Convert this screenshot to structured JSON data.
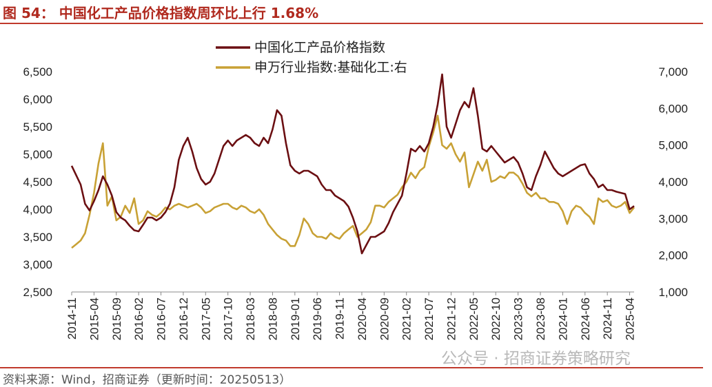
{
  "header": {
    "title": "图 54： 中国化工产品价格指数周环比上行 1.68%"
  },
  "footer": {
    "source": "资料来源：Wind，招商证券（更新时间：20250513）",
    "watermark": "公众号 · 招商证券策略研究"
  },
  "chart_data": {
    "type": "line",
    "title": "",
    "x_tick_labels": [
      "2014-11",
      "2015-04",
      "2015-09",
      "2016-02",
      "2016-07",
      "2016-12",
      "2017-05",
      "2017-10",
      "2018-03",
      "2018-08",
      "2019-01",
      "2019-06",
      "2019-11",
      "2020-04",
      "2020-09",
      "2021-02",
      "2021-07",
      "2021-12",
      "2022-05",
      "2022-10",
      "2023-03",
      "2023-08",
      "2024-01",
      "2024-06",
      "2024-11",
      "2025-04"
    ],
    "x_range": [
      "2014-11",
      "2025-05"
    ],
    "y_left": {
      "range": [
        2500,
        6500
      ],
      "ticks": [
        "2,500",
        "3,000",
        "3,500",
        "4,000",
        "4,500",
        "5,000",
        "5,500",
        "6,000",
        "6,500"
      ]
    },
    "y_right": {
      "range": [
        1000,
        7000
      ],
      "ticks": [
        "1,000",
        "2,000",
        "3,000",
        "4,000",
        "5,000",
        "6,000",
        "7,000"
      ]
    },
    "grid": false,
    "legend_position": "top-center",
    "series": [
      {
        "name": "中国化工产品价格指数",
        "axis": "left",
        "color": "#6b0f12",
        "points": [
          [
            "2014-11",
            4790
          ],
          [
            "2015-01",
            4450
          ],
          [
            "2015-02",
            4100
          ],
          [
            "2015-03",
            3980
          ],
          [
            "2015-04",
            4150
          ],
          [
            "2015-05",
            4350
          ],
          [
            "2015-06",
            4600
          ],
          [
            "2015-07",
            4450
          ],
          [
            "2015-08",
            4250
          ],
          [
            "2015-09",
            3950
          ],
          [
            "2015-10",
            3850
          ],
          [
            "2015-11",
            3800
          ],
          [
            "2015-12",
            3700
          ],
          [
            "2016-01",
            3620
          ],
          [
            "2016-02",
            3600
          ],
          [
            "2016-03",
            3720
          ],
          [
            "2016-04",
            3850
          ],
          [
            "2016-05",
            3850
          ],
          [
            "2016-06",
            3800
          ],
          [
            "2016-07",
            3850
          ],
          [
            "2016-08",
            3950
          ],
          [
            "2016-09",
            4100
          ],
          [
            "2016-10",
            4400
          ],
          [
            "2016-11",
            4900
          ],
          [
            "2016-12",
            5150
          ],
          [
            "2017-01",
            5300
          ],
          [
            "2017-02",
            5050
          ],
          [
            "2017-03",
            4750
          ],
          [
            "2017-04",
            4550
          ],
          [
            "2017-05",
            4450
          ],
          [
            "2017-06",
            4500
          ],
          [
            "2017-07",
            4650
          ],
          [
            "2017-08",
            4900
          ],
          [
            "2017-09",
            5150
          ],
          [
            "2017-10",
            5250
          ],
          [
            "2017-11",
            5150
          ],
          [
            "2017-12",
            5250
          ],
          [
            "2018-01",
            5300
          ],
          [
            "2018-02",
            5350
          ],
          [
            "2018-03",
            5300
          ],
          [
            "2018-04",
            5200
          ],
          [
            "2018-05",
            5150
          ],
          [
            "2018-06",
            5300
          ],
          [
            "2018-07",
            5200
          ],
          [
            "2018-08",
            5450
          ],
          [
            "2018-09",
            5800
          ],
          [
            "2018-10",
            5700
          ],
          [
            "2018-11",
            5200
          ],
          [
            "2018-12",
            4800
          ],
          [
            "2019-01",
            4700
          ],
          [
            "2019-02",
            4650
          ],
          [
            "2019-03",
            4700
          ],
          [
            "2019-04",
            4700
          ],
          [
            "2019-05",
            4650
          ],
          [
            "2019-06",
            4600
          ],
          [
            "2019-07",
            4450
          ],
          [
            "2019-08",
            4350
          ],
          [
            "2019-09",
            4350
          ],
          [
            "2019-10",
            4250
          ],
          [
            "2019-11",
            4200
          ],
          [
            "2019-12",
            4150
          ],
          [
            "2020-01",
            4050
          ],
          [
            "2020-02",
            3850
          ],
          [
            "2020-03",
            3600
          ],
          [
            "2020-04",
            3200
          ],
          [
            "2020-05",
            3350
          ],
          [
            "2020-06",
            3500
          ],
          [
            "2020-07",
            3500
          ],
          [
            "2020-08",
            3550
          ],
          [
            "2020-09",
            3600
          ],
          [
            "2020-10",
            3750
          ],
          [
            "2020-11",
            3950
          ],
          [
            "2020-12",
            4100
          ],
          [
            "2021-01",
            4250
          ],
          [
            "2021-02",
            4650
          ],
          [
            "2021-03",
            5100
          ],
          [
            "2021-04",
            5050
          ],
          [
            "2021-05",
            5150
          ],
          [
            "2021-06",
            5050
          ],
          [
            "2021-07",
            5200
          ],
          [
            "2021-08",
            5500
          ],
          [
            "2021-09",
            5900
          ],
          [
            "2021-10",
            6450
          ],
          [
            "2021-11",
            5500
          ],
          [
            "2021-12",
            5300
          ],
          [
            "2022-01",
            5550
          ],
          [
            "2022-02",
            5800
          ],
          [
            "2022-03",
            5950
          ],
          [
            "2022-04",
            5850
          ],
          [
            "2022-05",
            6200
          ],
          [
            "2022-06",
            5700
          ],
          [
            "2022-07",
            5100
          ],
          [
            "2022-08",
            5050
          ],
          [
            "2022-09",
            5150
          ],
          [
            "2022-10",
            5050
          ],
          [
            "2022-11",
            4950
          ],
          [
            "2022-12",
            4850
          ],
          [
            "2023-01",
            4900
          ],
          [
            "2023-02",
            4950
          ],
          [
            "2023-03",
            4850
          ],
          [
            "2023-04",
            4650
          ],
          [
            "2023-05",
            4400
          ],
          [
            "2023-06",
            4350
          ],
          [
            "2023-07",
            4600
          ],
          [
            "2023-08",
            4800
          ],
          [
            "2023-09",
            5050
          ],
          [
            "2023-10",
            4900
          ],
          [
            "2023-11",
            4750
          ],
          [
            "2023-12",
            4650
          ],
          [
            "2024-01",
            4600
          ],
          [
            "2024-02",
            4650
          ],
          [
            "2024-03",
            4700
          ],
          [
            "2024-04",
            4750
          ],
          [
            "2024-05",
            4800
          ],
          [
            "2024-06",
            4820
          ],
          [
            "2024-07",
            4650
          ],
          [
            "2024-08",
            4550
          ],
          [
            "2024-09",
            4400
          ],
          [
            "2024-10",
            4450
          ],
          [
            "2024-11",
            4350
          ],
          [
            "2024-12",
            4350
          ],
          [
            "2025-01",
            4320
          ],
          [
            "2025-02",
            4300
          ],
          [
            "2025-03",
            4280
          ],
          [
            "2025-04",
            4000
          ],
          [
            "2025-05",
            4060
          ]
        ]
      },
      {
        "name": "申万行业指数:基础化工:右",
        "axis": "right",
        "color": "#c8a135",
        "points": [
          [
            "2014-11",
            2200
          ],
          [
            "2014-12",
            2300
          ],
          [
            "2015-01",
            2400
          ],
          [
            "2015-02",
            2600
          ],
          [
            "2015-03",
            3100
          ],
          [
            "2015-04",
            3700
          ],
          [
            "2015-05",
            4500
          ],
          [
            "2015-06",
            5050
          ],
          [
            "2015-07",
            3350
          ],
          [
            "2015-08",
            3600
          ],
          [
            "2015-09",
            2950
          ],
          [
            "2015-10",
            3050
          ],
          [
            "2015-11",
            3350
          ],
          [
            "2015-12",
            3150
          ],
          [
            "2016-01",
            3550
          ],
          [
            "2016-02",
            2850
          ],
          [
            "2016-03",
            2950
          ],
          [
            "2016-04",
            3200
          ],
          [
            "2016-05",
            3100
          ],
          [
            "2016-06",
            3050
          ],
          [
            "2016-07",
            3150
          ],
          [
            "2016-08",
            3300
          ],
          [
            "2016-09",
            3250
          ],
          [
            "2016-10",
            3350
          ],
          [
            "2016-11",
            3400
          ],
          [
            "2016-12",
            3350
          ],
          [
            "2017-01",
            3300
          ],
          [
            "2017-02",
            3350
          ],
          [
            "2017-03",
            3400
          ],
          [
            "2017-04",
            3300
          ],
          [
            "2017-05",
            3150
          ],
          [
            "2017-06",
            3200
          ],
          [
            "2017-07",
            3300
          ],
          [
            "2017-08",
            3350
          ],
          [
            "2017-09",
            3400
          ],
          [
            "2017-10",
            3400
          ],
          [
            "2017-11",
            3300
          ],
          [
            "2017-12",
            3250
          ],
          [
            "2018-01",
            3350
          ],
          [
            "2018-02",
            3300
          ],
          [
            "2018-03",
            3200
          ],
          [
            "2018-04",
            3150
          ],
          [
            "2018-05",
            3250
          ],
          [
            "2018-06",
            3100
          ],
          [
            "2018-07",
            2850
          ],
          [
            "2018-08",
            2700
          ],
          [
            "2018-09",
            2550
          ],
          [
            "2018-10",
            2450
          ],
          [
            "2018-11",
            2400
          ],
          [
            "2018-12",
            2250
          ],
          [
            "2019-01",
            2250
          ],
          [
            "2019-02",
            2550
          ],
          [
            "2019-03",
            3000
          ],
          [
            "2019-04",
            2850
          ],
          [
            "2019-05",
            2600
          ],
          [
            "2019-06",
            2500
          ],
          [
            "2019-07",
            2500
          ],
          [
            "2019-08",
            2450
          ],
          [
            "2019-09",
            2600
          ],
          [
            "2019-10",
            2500
          ],
          [
            "2019-11",
            2450
          ],
          [
            "2019-12",
            2600
          ],
          [
            "2020-01",
            2700
          ],
          [
            "2020-02",
            2800
          ],
          [
            "2020-03",
            2500
          ],
          [
            "2020-04",
            2600
          ],
          [
            "2020-05",
            2700
          ],
          [
            "2020-06",
            2900
          ],
          [
            "2020-07",
            3350
          ],
          [
            "2020-08",
            3350
          ],
          [
            "2020-09",
            3300
          ],
          [
            "2020-10",
            3450
          ],
          [
            "2020-11",
            3550
          ],
          [
            "2020-12",
            3650
          ],
          [
            "2021-01",
            3850
          ],
          [
            "2021-02",
            4000
          ],
          [
            "2021-03",
            4250
          ],
          [
            "2021-04",
            4100
          ],
          [
            "2021-05",
            4300
          ],
          [
            "2021-06",
            4400
          ],
          [
            "2021-07",
            4950
          ],
          [
            "2021-08",
            5350
          ],
          [
            "2021-09",
            5800
          ],
          [
            "2021-10",
            5000
          ],
          [
            "2021-11",
            4900
          ],
          [
            "2021-12",
            5050
          ],
          [
            "2022-01",
            4750
          ],
          [
            "2022-02",
            4550
          ],
          [
            "2022-03",
            4800
          ],
          [
            "2022-04",
            3850
          ],
          [
            "2022-05",
            4200
          ],
          [
            "2022-06",
            4550
          ],
          [
            "2022-07",
            4300
          ],
          [
            "2022-08",
            4600
          ],
          [
            "2022-09",
            4000
          ],
          [
            "2022-10",
            4050
          ],
          [
            "2022-11",
            4150
          ],
          [
            "2022-12",
            4100
          ],
          [
            "2023-01",
            4250
          ],
          [
            "2023-02",
            4250
          ],
          [
            "2023-03",
            4150
          ],
          [
            "2023-04",
            3950
          ],
          [
            "2023-05",
            3700
          ],
          [
            "2023-06",
            3600
          ],
          [
            "2023-07",
            3700
          ],
          [
            "2023-08",
            3550
          ],
          [
            "2023-09",
            3550
          ],
          [
            "2023-10",
            3450
          ],
          [
            "2023-11",
            3450
          ],
          [
            "2023-12",
            3400
          ],
          [
            "2024-01",
            3200
          ],
          [
            "2024-02",
            2850
          ],
          [
            "2024-03",
            3200
          ],
          [
            "2024-04",
            3350
          ],
          [
            "2024-05",
            3300
          ],
          [
            "2024-06",
            3150
          ],
          [
            "2024-07",
            3050
          ],
          [
            "2024-08",
            2850
          ],
          [
            "2024-09",
            3550
          ],
          [
            "2024-10",
            3450
          ],
          [
            "2024-11",
            3500
          ],
          [
            "2024-12",
            3350
          ],
          [
            "2025-01",
            3300
          ],
          [
            "2025-02",
            3350
          ],
          [
            "2025-03",
            3450
          ],
          [
            "2025-04",
            3150
          ],
          [
            "2025-05",
            3300
          ]
        ]
      }
    ]
  }
}
